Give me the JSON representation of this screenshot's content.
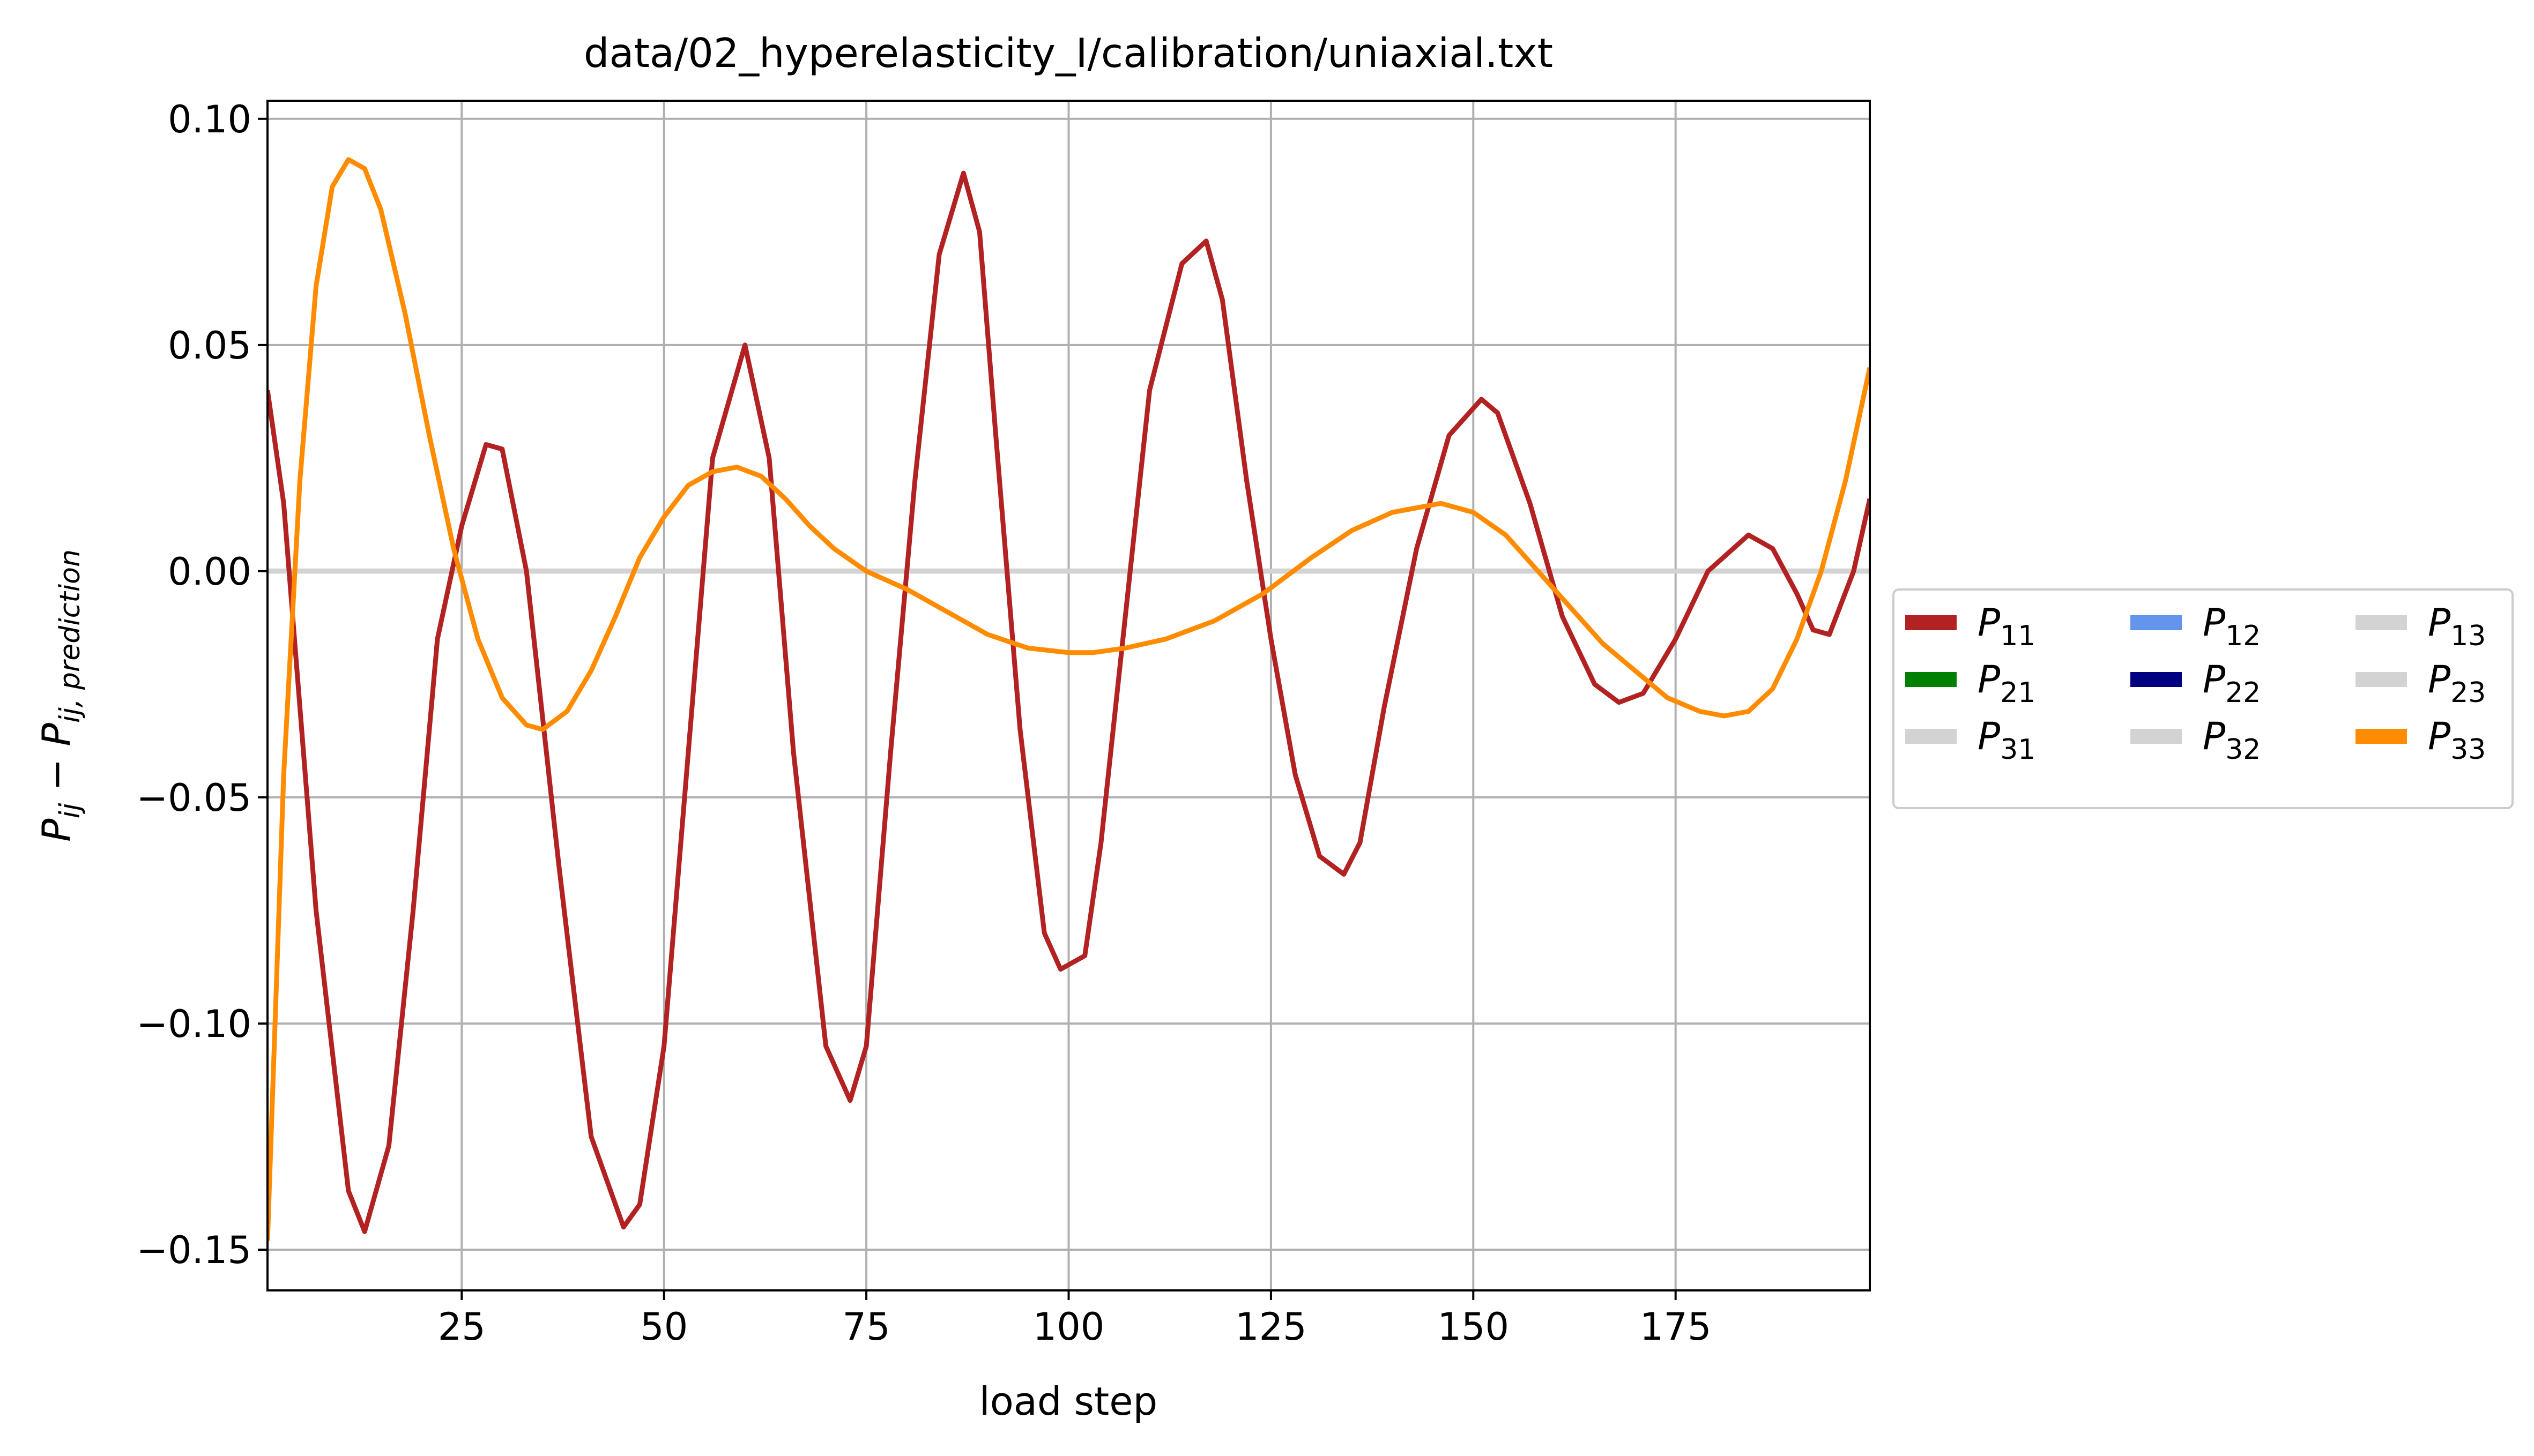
{
  "chart_data": {
    "type": "line",
    "title": "data/02_hyperelasticity_I/calibration/uniaxial.txt",
    "xlabel": "load step",
    "ylabel": {
      "main": "P",
      "sub1": "ij",
      "minus": " − ",
      "main2": "P",
      "sub2": "ij, prediction"
    },
    "xlim": [
      1,
      199
    ],
    "ylim": [
      -0.159,
      0.104
    ],
    "xticks": [
      25,
      50,
      75,
      100,
      125,
      150,
      175
    ],
    "xtick_labels": [
      "25",
      "50",
      "75",
      "100",
      "125",
      "150",
      "175"
    ],
    "yticks": [
      0.1,
      0.05,
      0.0,
      -0.05,
      -0.1,
      -0.15
    ],
    "ytick_labels": [
      "0.10",
      "0.05",
      "0.00",
      "−0.05",
      "−0.10",
      "−0.15"
    ],
    "grid": true,
    "legend_position": "outside-right",
    "legend_columns": 3,
    "series": [
      {
        "name": "11",
        "color": "#b22222",
        "x": [
          1,
          3,
          7,
          11,
          13,
          16,
          19,
          22,
          25,
          28,
          30,
          33,
          37,
          41,
          45,
          47,
          50,
          53,
          56,
          60,
          63,
          66,
          70,
          73,
          75,
          78,
          81,
          84,
          87,
          89,
          91,
          94,
          97,
          99,
          102,
          104,
          107,
          110,
          114,
          117,
          119,
          122,
          125,
          128,
          131,
          134,
          136,
          139,
          143,
          147,
          151,
          153,
          157,
          161,
          165,
          168,
          171,
          175,
          179,
          184,
          187,
          190,
          192,
          194,
          197,
          199
        ],
        "y": [
          0.04,
          0.015,
          -0.075,
          -0.137,
          -0.146,
          -0.127,
          -0.075,
          -0.015,
          0.01,
          0.028,
          0.027,
          0.0,
          -0.065,
          -0.125,
          -0.145,
          -0.14,
          -0.105,
          -0.04,
          0.025,
          0.05,
          0.025,
          -0.04,
          -0.105,
          -0.117,
          -0.105,
          -0.04,
          0.02,
          0.07,
          0.088,
          0.075,
          0.03,
          -0.035,
          -0.08,
          -0.088,
          -0.085,
          -0.06,
          -0.01,
          0.04,
          0.068,
          0.073,
          0.06,
          0.02,
          -0.015,
          -0.045,
          -0.063,
          -0.067,
          -0.06,
          -0.03,
          0.005,
          0.03,
          0.038,
          0.035,
          0.015,
          -0.01,
          -0.025,
          -0.029,
          -0.027,
          -0.015,
          0.0,
          0.008,
          0.005,
          -0.005,
          -0.013,
          -0.014,
          0.0,
          0.016
        ]
      },
      {
        "name": "12",
        "color": "#6495ed",
        "x": [
          1,
          199
        ],
        "y": [
          0,
          0
        ]
      },
      {
        "name": "13",
        "color": "#d3d3d3",
        "x": [
          1,
          199
        ],
        "y": [
          0,
          0
        ]
      },
      {
        "name": "21",
        "color": "#008000",
        "x": [
          1,
          199
        ],
        "y": [
          0,
          0
        ]
      },
      {
        "name": "22",
        "color": "#000080",
        "x": [
          1,
          199
        ],
        "y": [
          0,
          0
        ]
      },
      {
        "name": "23",
        "color": "#d3d3d3",
        "x": [
          1,
          199
        ],
        "y": [
          0,
          0
        ]
      },
      {
        "name": "31",
        "color": "#d3d3d3",
        "x": [
          1,
          199
        ],
        "y": [
          0,
          0
        ]
      },
      {
        "name": "32",
        "color": "#d3d3d3",
        "x": [
          1,
          199
        ],
        "y": [
          0,
          0
        ]
      },
      {
        "name": "33",
        "color": "#ff8c00",
        "x": [
          1,
          3,
          5,
          7,
          9,
          11,
          13,
          15,
          18,
          21,
          24,
          27,
          30,
          33,
          35,
          38,
          41,
          44,
          47,
          50,
          53,
          56,
          59,
          62,
          65,
          68,
          71,
          75,
          80,
          85,
          90,
          95,
          100,
          103,
          107,
          112,
          118,
          124,
          130,
          135,
          140,
          146,
          150,
          154,
          158,
          162,
          166,
          170,
          174,
          178,
          181,
          184,
          187,
          190,
          193,
          196,
          199
        ],
        "y": [
          -0.148,
          -0.045,
          0.02,
          0.063,
          0.085,
          0.091,
          0.089,
          0.08,
          0.057,
          0.03,
          0.005,
          -0.015,
          -0.028,
          -0.034,
          -0.035,
          -0.031,
          -0.022,
          -0.01,
          0.003,
          0.012,
          0.019,
          0.022,
          0.023,
          0.021,
          0.016,
          0.01,
          0.005,
          0.0,
          -0.004,
          -0.009,
          -0.014,
          -0.017,
          -0.018,
          -0.018,
          -0.017,
          -0.015,
          -0.011,
          -0.005,
          0.003,
          0.009,
          0.013,
          0.015,
          0.013,
          0.008,
          0.0,
          -0.008,
          -0.016,
          -0.022,
          -0.028,
          -0.031,
          -0.032,
          -0.031,
          -0.026,
          -0.015,
          0.0,
          0.02,
          0.045
        ]
      }
    ],
    "legend": [
      [
        "11",
        "21",
        "31"
      ],
      [
        "12",
        "22",
        "32"
      ],
      [
        "13",
        "23",
        "33"
      ]
    ]
  }
}
